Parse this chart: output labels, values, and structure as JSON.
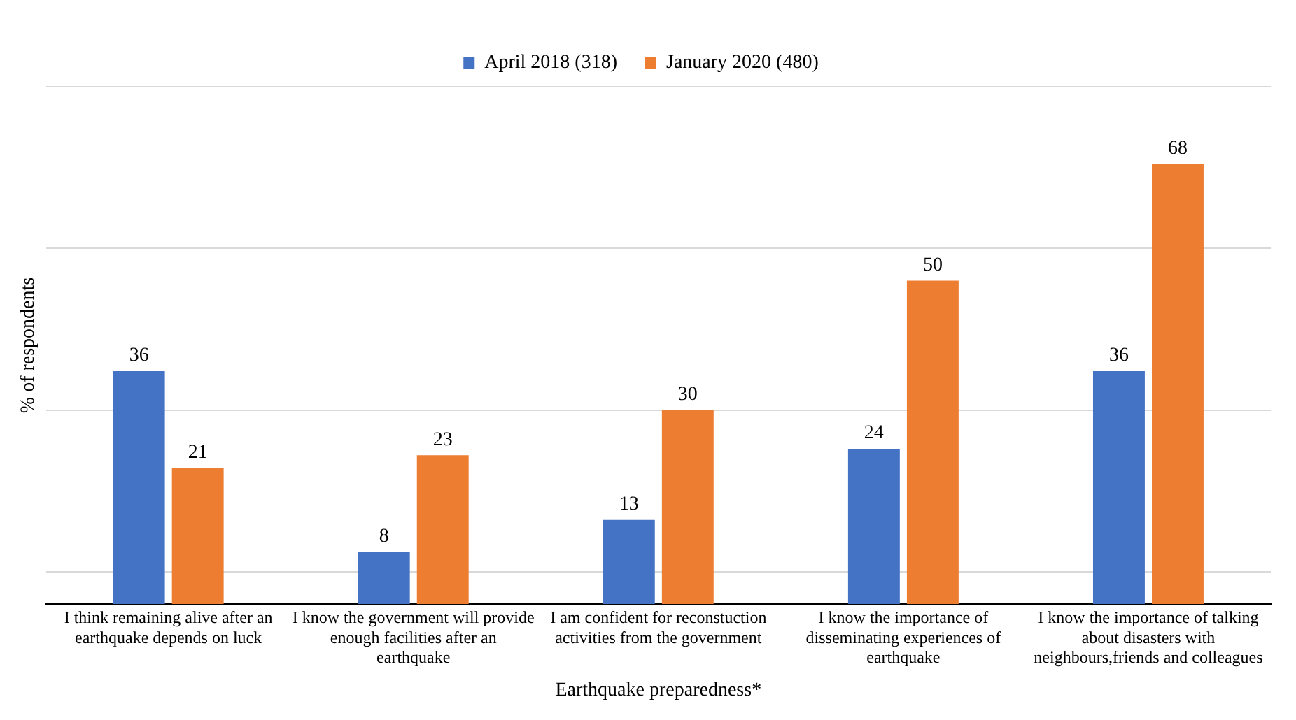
{
  "chart_data": {
    "type": "bar",
    "xlabel": "Earthquake preparedness*",
    "ylabel": "% of respondents",
    "categories": [
      "I think remaining alive after an earthquake depends on luck",
      "I know the government will provide enough facilities after an earthquake",
      "I am confident for reconstuction activities from the government",
      "I know the importance of disseminating experiences of earthquake",
      "I know the importance of talking about disasters with neighbours,friends and colleagues"
    ],
    "series": [
      {
        "name": "April 2018 (318)",
        "color": "#4472c4",
        "values": [
          36,
          8,
          13,
          24,
          36
        ]
      },
      {
        "name": "January 2020 (480)",
        "color": "#ed7d31",
        "values": [
          21,
          23,
          30,
          50,
          68
        ]
      }
    ],
    "ylim": [
      0,
      80
    ],
    "yticks": [
      {
        "value": 5,
        "label": null
      },
      {
        "value": 30,
        "label": null
      },
      {
        "value": 55,
        "label": null
      },
      {
        "value": 80,
        "label": null
      }
    ],
    "grid": "y",
    "legend": "top",
    "data_labels": true,
    "tick_labels": "x"
  }
}
